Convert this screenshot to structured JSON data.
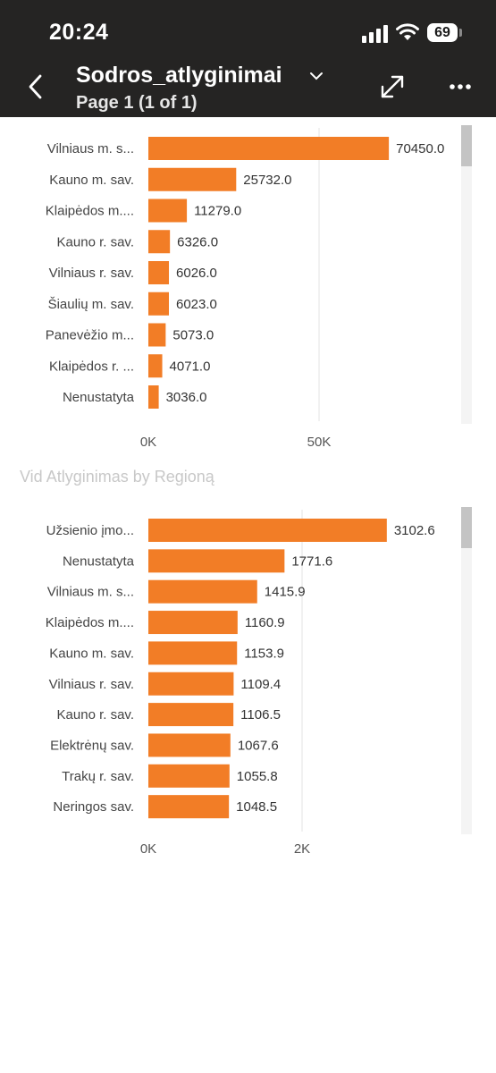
{
  "status_bar": {
    "time": "20:24",
    "battery": "69"
  },
  "header": {
    "title": "Sodros_atlyginimai",
    "subtitle": "Page 1 (1 of 1)",
    "icons": [
      "back-icon",
      "chevron-down-icon",
      "expand-icon",
      "more-icon"
    ]
  },
  "colors": {
    "bar": "#f27d26",
    "header": "#252423",
    "scrollbar": "#c4c4c4"
  },
  "chart_data": [
    {
      "type": "bar",
      "orientation": "horizontal",
      "title": "",
      "categories": [
        "Vilniaus m. s...",
        "Kauno m. sav.",
        "Klaipėdos m....",
        "Kauno r. sav.",
        "Vilniaus r. sav.",
        "Šiaulių m. sav.",
        "Panevėžio m...",
        "Klaipėdos r. ...",
        "Nenustatyta"
      ],
      "values": [
        70450.0,
        25732.0,
        11279.0,
        6326.0,
        6026.0,
        6023.0,
        5073.0,
        4071.0,
        3036.0
      ],
      "value_labels": [
        "70450.0",
        "25732.0",
        "11279.0",
        "6326.0",
        "6026.0",
        "6023.0",
        "5073.0",
        "4071.0",
        "3036.0"
      ],
      "xlim": [
        0,
        100000
      ],
      "ticks": [
        0,
        50000
      ],
      "tick_labels": [
        "0K",
        "50K"
      ],
      "grid": true
    },
    {
      "type": "bar",
      "orientation": "horizontal",
      "title": "Vid Atlyginimas by Regioną",
      "categories": [
        "Užsienio įmo...",
        "Nenustatyta",
        "Vilniaus m. s...",
        "Klaipėdos m....",
        "Kauno m. sav.",
        "Vilniaus r. sav.",
        "Kauno r. sav.",
        "Elektrėnų sav.",
        "Trakų r. sav.",
        "Neringos sav."
      ],
      "values": [
        3102.6,
        1771.6,
        1415.9,
        1160.9,
        1153.9,
        1109.4,
        1106.5,
        1067.6,
        1055.8,
        1048.5
      ],
      "value_labels": [
        "3102.6",
        "1771.6",
        "1415.9",
        "1160.9",
        "1153.9",
        "1109.4",
        "1106.5",
        "1067.6",
        "1055.8",
        "1048.5"
      ],
      "xlim": [
        0,
        4000
      ],
      "ticks": [
        0,
        2000
      ],
      "tick_labels": [
        "0K",
        "2K"
      ],
      "grid": true
    }
  ]
}
